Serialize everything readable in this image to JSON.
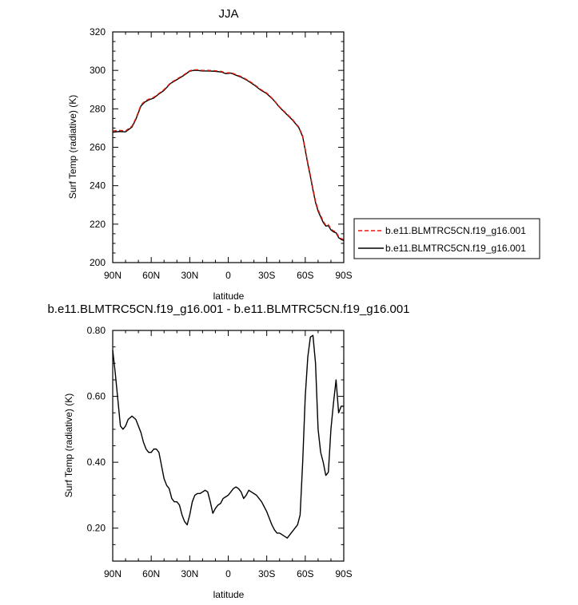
{
  "chart_data": [
    {
      "type": "line",
      "title": "JJA",
      "xlabel": "latitude",
      "ylabel": "Surf Temp (radiative) (K)",
      "xlim": [
        90,
        -90
      ],
      "ylim": [
        200,
        320
      ],
      "x_ticks": [
        90,
        60,
        30,
        0,
        -30,
        -60,
        -90
      ],
      "x_tick_labels": [
        "90N",
        "60N",
        "30N",
        "0",
        "30S",
        "60S",
        "90S"
      ],
      "y_ticks": [
        200,
        220,
        240,
        260,
        280,
        300,
        320
      ],
      "y_tick_labels": [
        "200",
        "220",
        "240",
        "260",
        "280",
        "300",
        "320"
      ],
      "legend_placement": "right",
      "x": [
        90,
        85,
        80,
        75,
        72,
        68,
        65,
        62,
        58,
        55,
        50,
        45,
        40,
        35,
        30,
        27,
        24,
        20,
        15,
        10,
        5,
        2,
        -2,
        -6,
        -10,
        -15,
        -20,
        -25,
        -30,
        -35,
        -40,
        -45,
        -50,
        -55,
        -58,
        -60,
        -62,
        -64,
        -66,
        -68,
        -70,
        -72,
        -74,
        -76,
        -78,
        -80,
        -82,
        -84,
        -86,
        -88,
        -90
      ],
      "series": [
        {
          "name": "b.e11.BLMTRC5CN.f19_g16.001",
          "color": "#e3170a",
          "dash": "dashed",
          "values": [
            268.5,
            268.8,
            268.5,
            271,
            275,
            282,
            284,
            285,
            286,
            287.5,
            290,
            293.5,
            295.5,
            297.5,
            299.8,
            300.3,
            300.3,
            300.0,
            300.0,
            299.8,
            299.4,
            298.6,
            298.9,
            297.8,
            296.8,
            295.0,
            292.8,
            290.2,
            288.2,
            285.0,
            281.0,
            277.8,
            274.5,
            270.5,
            266.0,
            259.0,
            252.0,
            245.5,
            238.5,
            232.0,
            227.5,
            224.5,
            221.5,
            219.5,
            219.8,
            217.5,
            216.5,
            216.0,
            213.5,
            212.5,
            212.0
          ]
        },
        {
          "name": "b.e11.BLMTRC5CN.f19_g16.001",
          "color": "#000000",
          "dash": "solid",
          "values": [
            267.8,
            268.2,
            268.0,
            270.5,
            274.5,
            281.5,
            283.5,
            284.6,
            285.6,
            287.2,
            289.6,
            293.2,
            295.2,
            297.2,
            299.6,
            300.0,
            300.0,
            299.7,
            299.7,
            299.5,
            299.1,
            298.3,
            298.6,
            297.5,
            296.5,
            294.7,
            292.5,
            289.9,
            287.9,
            284.8,
            280.8,
            277.5,
            274.2,
            270.2,
            265.5,
            258.5,
            251.3,
            244.8,
            237.8,
            231.3,
            226.8,
            223.8,
            220.9,
            219.0,
            219.2,
            217.0,
            216.0,
            215.5,
            213.0,
            212.0,
            211.5
          ]
        }
      ]
    },
    {
      "type": "line",
      "title": "b.e11.BLMTRC5CN.f19_g16.001 - b.e11.BLMTRC5CN.f19_g16.001",
      "xlabel": "latitude",
      "ylabel": "Surf Temp (radiative) (K)",
      "xlim": [
        90,
        -90
      ],
      "ylim": [
        0.1,
        0.8
      ],
      "x_ticks": [
        90,
        60,
        30,
        0,
        -30,
        -60,
        -90
      ],
      "x_tick_labels": [
        "90N",
        "60N",
        "30N",
        "0",
        "30S",
        "60S",
        "90S"
      ],
      "y_ticks": [
        0.2,
        0.4,
        0.6,
        0.8
      ],
      "y_tick_labels": [
        "0.20",
        "0.40",
        "0.60",
        "0.80"
      ],
      "x": [
        90,
        88,
        86,
        84,
        82,
        80,
        78,
        75,
        72,
        70,
        68,
        66,
        64,
        62,
        60,
        58,
        56,
        54,
        52,
        50,
        48,
        46,
        44,
        42,
        40,
        38,
        36,
        34,
        32,
        30,
        28,
        26,
        24,
        22,
        20,
        18,
        16,
        14,
        12,
        10,
        8,
        6,
        4,
        2,
        0,
        -2,
        -4,
        -6,
        -8,
        -10,
        -12,
        -14,
        -16,
        -18,
        -20,
        -22,
        -24,
        -26,
        -28,
        -30,
        -32,
        -34,
        -36,
        -38,
        -40,
        -42,
        -44,
        -46,
        -48,
        -50,
        -52,
        -54,
        -56,
        -58,
        -60,
        -62,
        -64,
        -66,
        -68,
        -70,
        -72,
        -74,
        -76,
        -78,
        -80,
        -82,
        -84,
        -86,
        -88,
        -90
      ],
      "series": [
        {
          "name": "",
          "color": "#000000",
          "values": [
            0.74,
            0.67,
            0.59,
            0.51,
            0.5,
            0.51,
            0.53,
            0.54,
            0.53,
            0.51,
            0.49,
            0.46,
            0.44,
            0.43,
            0.43,
            0.44,
            0.44,
            0.43,
            0.39,
            0.35,
            0.33,
            0.32,
            0.29,
            0.28,
            0.28,
            0.27,
            0.24,
            0.22,
            0.21,
            0.24,
            0.28,
            0.3,
            0.305,
            0.305,
            0.31,
            0.315,
            0.31,
            0.28,
            0.245,
            0.26,
            0.27,
            0.275,
            0.29,
            0.295,
            0.3,
            0.31,
            0.32,
            0.325,
            0.32,
            0.31,
            0.29,
            0.3,
            0.315,
            0.31,
            0.305,
            0.3,
            0.29,
            0.28,
            0.265,
            0.25,
            0.23,
            0.21,
            0.195,
            0.185,
            0.185,
            0.18,
            0.175,
            0.17,
            0.18,
            0.19,
            0.2,
            0.21,
            0.24,
            0.4,
            0.6,
            0.72,
            0.78,
            0.785,
            0.7,
            0.5,
            0.43,
            0.4,
            0.36,
            0.37,
            0.5,
            0.58,
            0.65,
            0.55,
            0.57,
            0.57
          ]
        }
      ]
    }
  ]
}
